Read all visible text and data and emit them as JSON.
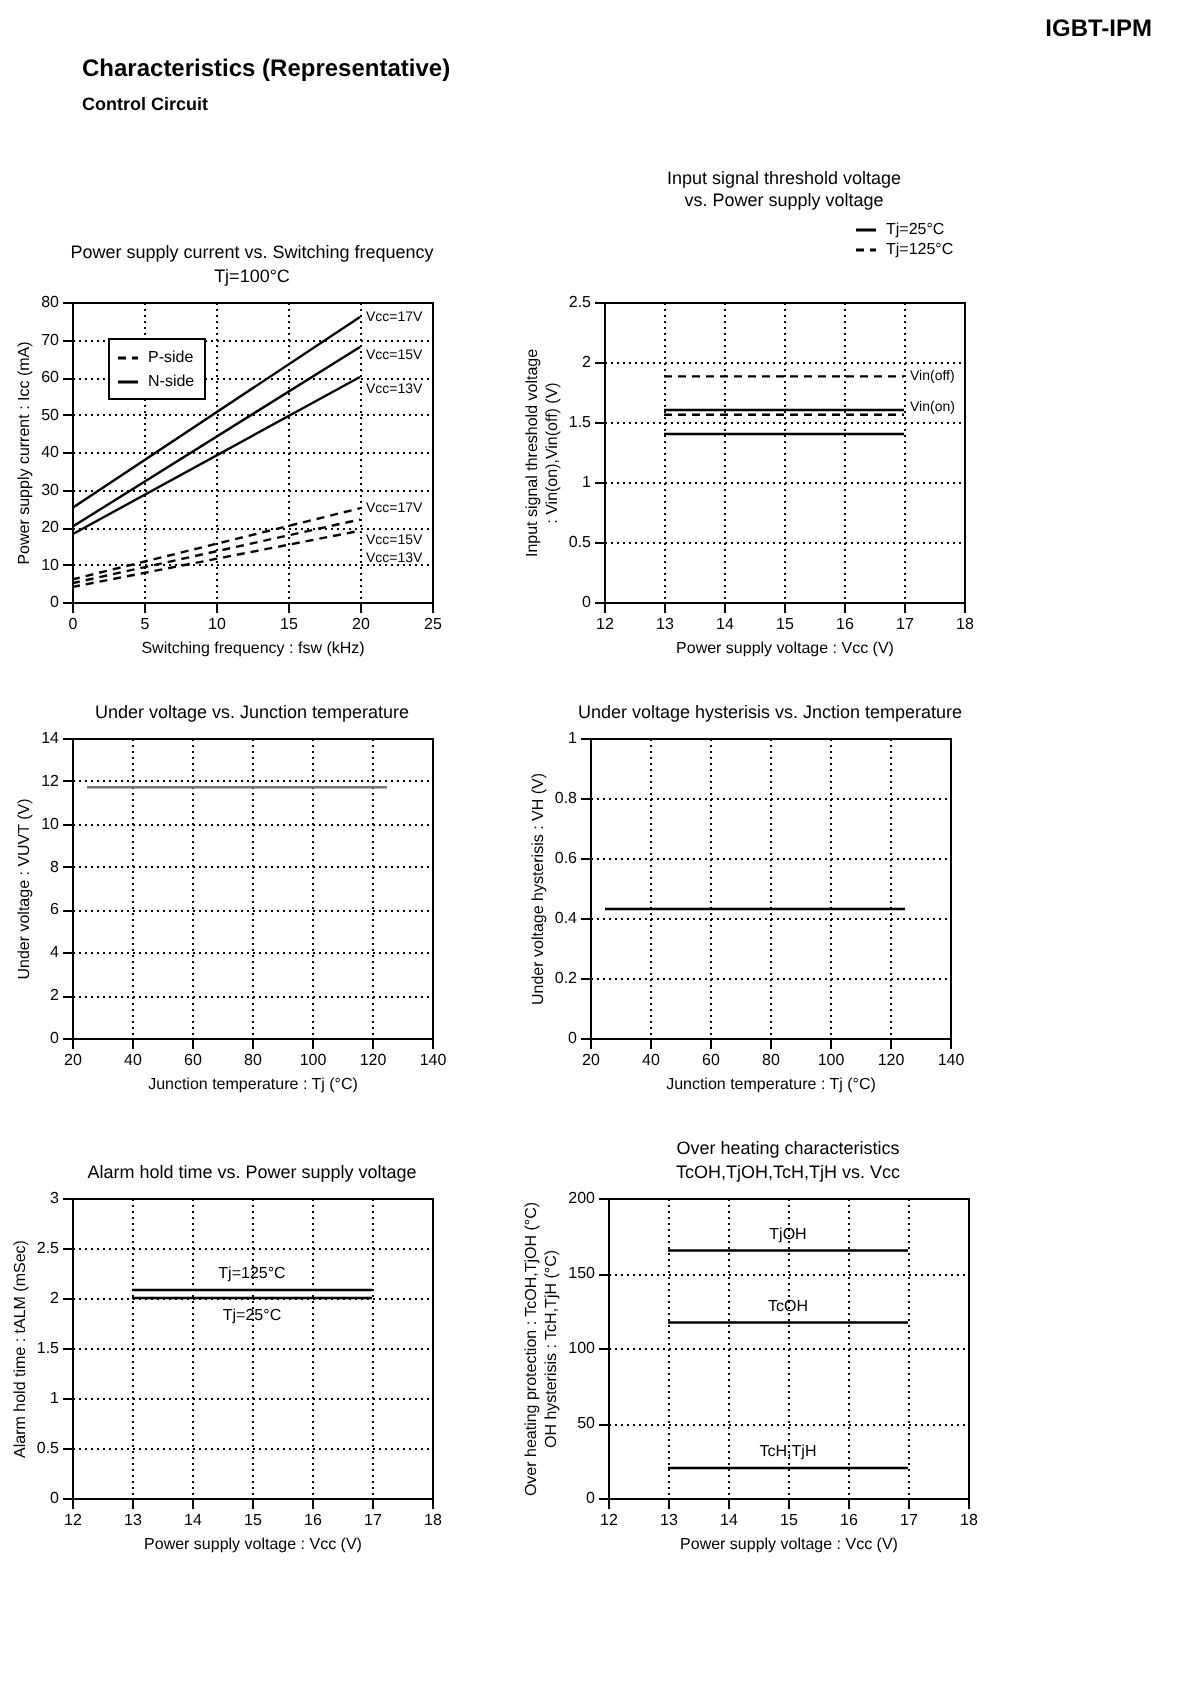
{
  "chart_data": [
    {
      "type": "line",
      "title": "Power supply current vs. Switching frequency",
      "subtitle": "Tj=100°C",
      "xlabel": "Switching frequency : fsw (kHz)",
      "ylabel": "Power supply current : Icc (mA)",
      "x": [
        0,
        20
      ],
      "xlim": [
        0,
        25
      ],
      "xticks": [
        0,
        5,
        10,
        15,
        20,
        25
      ],
      "ylim": [
        0,
        80
      ],
      "yticks": [
        0,
        10,
        20,
        30,
        40,
        50,
        60,
        70,
        80
      ],
      "grid": true,
      "legend": "top left",
      "annotations": [
        "IGBT-IPM",
        "Characteristics (Representative)",
        "Control Circuit",
        {
          "text": "Vcc=17V",
          "x": 20,
          "y": 76
        },
        {
          "text": "Vcc=15V",
          "x": 20,
          "y": 68
        },
        {
          "text": "Vcc=13V",
          "x": 20,
          "y": 60
        },
        {
          "text": "Vcc=17V",
          "x": 20,
          "y": 25
        },
        {
          "text": "Vcc=15V",
          "x": 20,
          "y": 22
        },
        {
          "text": "Vcc=13V",
          "x": 20,
          "y": 19
        }
      ],
      "series": [
        {
          "name": "P-side",
          "color": "#000000",
          "line_style": "dashed",
          "values": [
            6,
            25
          ]
        },
        {
          "color": "#000000",
          "line_style": "dashed",
          "values": [
            5,
            22
          ]
        },
        {
          "color": "#000000",
          "line_style": "dashed",
          "values": [
            4,
            19
          ]
        },
        {
          "name": "N-side",
          "color": "#000000",
          "line_style": "solid",
          "values": [
            25,
            76
          ]
        },
        {
          "color": "#000000",
          "line_style": "solid",
          "values": [
            20,
            68
          ]
        },
        {
          "color": "#000000",
          "line_style": "solid",
          "values": [
            18,
            60
          ]
        }
      ]
    },
    {
      "type": "line",
      "title": "Input signal threshold voltage\nvs. Power supply voltage",
      "xlabel": "Power supply voltage : Vcc (V)",
      "ylabel": "Input signal threshold voltage\n: Vin(on),Vin(off) (V)",
      "x": [
        13,
        17
      ],
      "xlim": [
        12,
        18
      ],
      "xticks": [
        12,
        13,
        14,
        15,
        16,
        17,
        18
      ],
      "ylim": [
        0,
        2.5
      ],
      "yticks": [
        0,
        0.5,
        1,
        1.5,
        2,
        2.5
      ],
      "grid": true,
      "legend": "top right",
      "annotations": [
        {
          "text": "Vin(off)",
          "x": 17,
          "y": 1.88
        },
        {
          "text": "Vin(on)",
          "x": 17,
          "y": 1.56
        }
      ],
      "series": [
        {
          "name": "Tj=25°C",
          "color": "#000000",
          "line_style": "solid",
          "values": [
            1.6,
            1.6
          ]
        },
        {
          "color": "#000000",
          "line_style": "solid",
          "values": [
            1.4,
            1.4
          ]
        },
        {
          "name": "Tj=125°C",
          "color": "#000000",
          "line_style": "dashed",
          "values": [
            1.88,
            1.88
          ]
        },
        {
          "color": "#000000",
          "line_style": "dashed",
          "values": [
            1.56,
            1.56
          ]
        }
      ]
    },
    {
      "type": "line",
      "title": "Under voltage vs. Junction temperature",
      "xlabel": "Junction temperature : Tj (°C)",
      "ylabel": "Under voltage : VUVT (V)",
      "x": [
        25,
        125
      ],
      "xlim": [
        20,
        140
      ],
      "xticks": [
        20,
        40,
        60,
        80,
        100,
        120,
        140
      ],
      "ylim": [
        0,
        14
      ],
      "yticks": [
        0,
        2,
        4,
        6,
        8,
        10,
        12,
        14
      ],
      "grid": true,
      "series": [
        {
          "color": "#777777",
          "line_style": "solid",
          "values": [
            11.7,
            11.7
          ]
        }
      ]
    },
    {
      "type": "line",
      "title": "Under voltage hysterisis vs. Jnction temperature",
      "xlabel": "Junction temperature : Tj (°C)",
      "ylabel": "Under voltage hysterisis : VH (V)",
      "x": [
        25,
        125
      ],
      "xlim": [
        20,
        140
      ],
      "xticks": [
        20,
        40,
        60,
        80,
        100,
        120,
        140
      ],
      "ylim": [
        0,
        1
      ],
      "yticks": [
        0,
        0.2,
        0.4,
        0.6,
        0.8,
        1
      ],
      "grid": true,
      "series": [
        {
          "color": "#000000",
          "line_style": "solid",
          "values": [
            0.43,
            0.43
          ]
        }
      ]
    },
    {
      "type": "line",
      "title": "Alarm hold time vs. Power supply voltage",
      "xlabel": "Power supply voltage : Vcc (V)",
      "ylabel": "Alarm hold time : tALM (mSec)",
      "x": [
        13,
        17
      ],
      "xlim": [
        12,
        18
      ],
      "xticks": [
        12,
        13,
        14,
        15,
        16,
        17,
        18
      ],
      "ylim": [
        0,
        3
      ],
      "yticks": [
        0,
        0.5,
        1,
        1.5,
        2,
        2.5,
        3
      ],
      "grid": true,
      "annotations": [
        {
          "text": "Tj=125°C",
          "x": 15,
          "y": 2.08
        },
        {
          "text": "Tj=25°C",
          "x": 15,
          "y": 2.0
        }
      ],
      "series": [
        {
          "color": "#000000",
          "line_style": "solid",
          "values": [
            2.08,
            2.08
          ]
        },
        {
          "color": "#000000",
          "line_style": "solid",
          "values": [
            2.0,
            2.0
          ]
        }
      ]
    },
    {
      "type": "line",
      "title": "Over heating characteristics",
      "subtitle": "TcOH,TjOH,TcH,TjH vs. Vcc",
      "xlabel": "Power supply voltage : Vcc (V)",
      "ylabel": "Over heating protection : TcOH,TjOH (°C)\nOH hysterisis : TcH,TjH (°C)",
      "x": [
        13,
        17
      ],
      "xlim": [
        12,
        18
      ],
      "xticks": [
        12,
        13,
        14,
        15,
        16,
        17,
        18
      ],
      "ylim": [
        0,
        200
      ],
      "yticks": [
        0,
        50,
        100,
        150,
        200
      ],
      "grid": true,
      "annotations": [
        {
          "text": "TjOH",
          "x": 15,
          "y": 165
        },
        {
          "text": "TcOH",
          "x": 15,
          "y": 117
        },
        {
          "text": "TcH,TjH",
          "x": 15,
          "y": 20
        }
      ],
      "series": [
        {
          "color": "#000000",
          "line_style": "solid",
          "values": [
            165,
            165
          ]
        },
        {
          "color": "#000000",
          "line_style": "solid",
          "values": [
            117,
            117
          ]
        },
        {
          "color": "#000000",
          "line_style": "solid",
          "values": [
            20,
            20
          ]
        }
      ]
    }
  ]
}
